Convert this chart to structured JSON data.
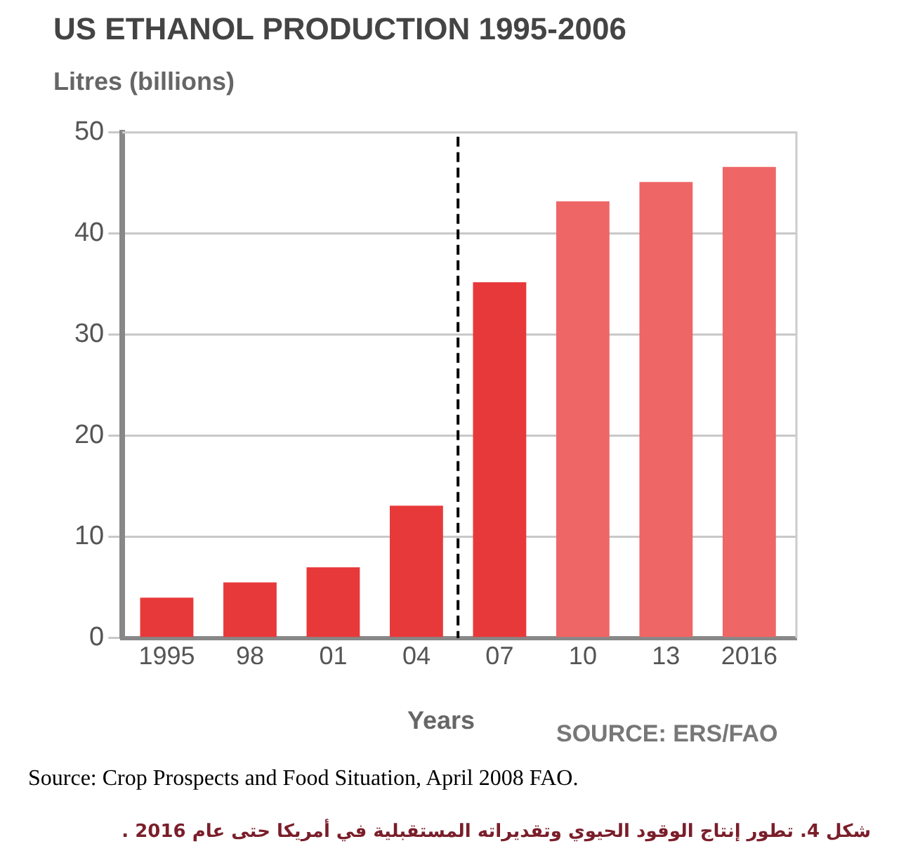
{
  "chart_data": {
    "type": "bar",
    "title": "US ETHANOL PRODUCTION 1995-2006",
    "ylabel": "Litres (billions)",
    "xlabel": "Years",
    "x": [
      1995,
      1998,
      2001,
      2004,
      2007,
      2010,
      2013,
      2016
    ],
    "values": [
      4.0,
      5.5,
      7.0,
      13.1,
      35.2,
      43.2,
      45.1,
      46.6
    ],
    "colors": [
      "#e8393a",
      "#e8393a",
      "#e8393a",
      "#e8393a",
      "#e8393a",
      "#ef6666",
      "#ef6666",
      "#ef6666"
    ],
    "xlim": [
      1993.4,
      2017.7
    ],
    "xticks": [
      1995,
      {
        "value": 1998,
        "label": "98"
      },
      {
        "value": 2001,
        "label": "01"
      },
      {
        "value": 2004,
        "label": "04"
      },
      {
        "value": 2007,
        "label": "07"
      },
      {
        "value": 2010,
        "label": "10"
      },
      {
        "value": 2013,
        "label": "13"
      },
      2016
    ],
    "ylim": [
      0,
      50
    ],
    "yticks": [
      0,
      10,
      20,
      30,
      40,
      50
    ],
    "grid": "y",
    "legend": false,
    "ref_lines": [
      {
        "axis": "x",
        "value": 2005.5,
        "color": "#000000",
        "line_style": "dashed"
      }
    ],
    "annotations": [
      "SOURCE: ERS/FAO",
      "Source: Crop Prospects and Food Situation, April 2008 FAO.",
      "شكل 4. تطور إنتاج الوقود الحيوي وتقديراته المستقبلية في أمريكا حتى عام 2016 ."
    ]
  }
}
